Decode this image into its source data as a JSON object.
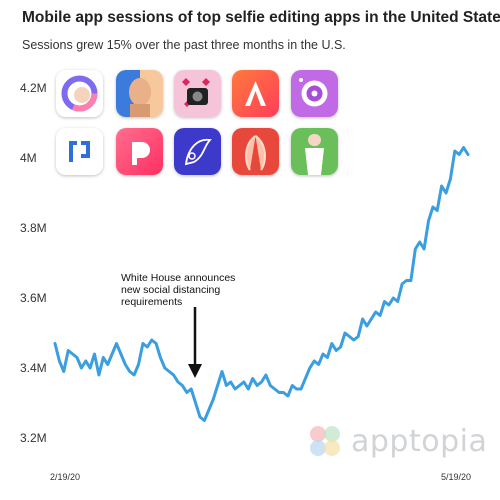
{
  "title": "Mobile app sessions of top selfie editing apps in the United States",
  "subtitle": "Sessions grew 15% over the past three months in the U.S.",
  "annotation": "White House announces\nnew social distancing\nrequirements",
  "watermark": "apptopia",
  "apps": [
    {
      "icon": "facetune-app-icon",
      "colors": [
        "#ffffff",
        "#7e6bf2"
      ]
    },
    {
      "icon": "faceapp-app-icon",
      "colors": [
        "#3b7bdc",
        "#f1b87c"
      ]
    },
    {
      "icon": "selfie-camera-app-icon",
      "colors": [
        "#f3a9c9",
        "#222222"
      ]
    },
    {
      "icon": "airbrush-app-icon",
      "colors": [
        "#ff5a3c",
        "#ffffff"
      ]
    },
    {
      "icon": "beauty-camera-app-icon",
      "colors": [
        "#b55be0",
        "#ffffff"
      ]
    },
    {
      "icon": "facetune2-app-icon",
      "colors": [
        "#ffffff",
        "#2f6fd8"
      ]
    },
    {
      "icon": "picsart-app-icon",
      "colors": [
        "#ff3d6b",
        "#ffffff"
      ]
    },
    {
      "icon": "facetune-editor-app-icon",
      "colors": [
        "#3d3acb",
        "#ffffff"
      ]
    },
    {
      "icon": "body-editor-app-icon",
      "colors": [
        "#e8483c",
        "#ffc0a8"
      ]
    },
    {
      "icon": "body-shape-app-icon",
      "colors": [
        "#4caf50",
        "#f3d7c4"
      ]
    }
  ],
  "chart_data": {
    "type": "line",
    "title": "Mobile app sessions of top selfie editing apps in the United States",
    "subtitle": "Sessions grew 15% over the past three months in the U.S.",
    "xlabel": "",
    "ylabel": "",
    "x_tick_labels": [
      "2/19/20",
      "5/19/20"
    ],
    "x_range": [
      "2/19/20",
      "5/19/20"
    ],
    "ylim": [
      3.2,
      4.2
    ],
    "y_ticks": [
      3.2,
      3.4,
      3.6,
      3.8,
      4.0,
      4.2
    ],
    "y_tick_labels": [
      "3.2M",
      "3.4M",
      "3.6M",
      "3.8M",
      "4M",
      "4.2M"
    ],
    "grid": false,
    "line_color": "#3a9ee0",
    "series": [
      {
        "values": [
          3.47,
          3.42,
          3.39,
          3.45,
          3.44,
          3.43,
          3.4,
          3.42,
          3.4,
          3.44,
          3.38,
          3.43,
          3.41,
          3.44,
          3.47,
          3.44,
          3.41,
          3.39,
          3.38,
          3.41,
          3.47,
          3.46,
          3.48,
          3.47,
          3.43,
          3.4,
          3.39,
          3.38,
          3.36,
          3.35,
          3.33,
          3.34,
          3.3,
          3.26,
          3.25,
          3.28,
          3.31,
          3.35,
          3.39,
          3.35,
          3.36,
          3.34,
          3.35,
          3.36,
          3.34,
          3.37,
          3.35,
          3.36,
          3.38,
          3.35,
          3.34,
          3.33,
          3.33,
          3.32,
          3.35,
          3.34,
          3.34,
          3.37,
          3.4,
          3.42,
          3.41,
          3.44,
          3.43,
          3.47,
          3.45,
          3.46,
          3.5,
          3.49,
          3.48,
          3.49,
          3.54,
          3.52,
          3.54,
          3.56,
          3.55,
          3.59,
          3.58,
          3.6,
          3.59,
          3.64,
          3.65,
          3.65,
          3.74,
          3.76,
          3.74,
          3.82,
          3.86,
          3.85,
          3.92,
          3.9,
          3.94,
          4.02,
          4.01,
          4.03,
          4.01
        ]
      }
    ]
  }
}
